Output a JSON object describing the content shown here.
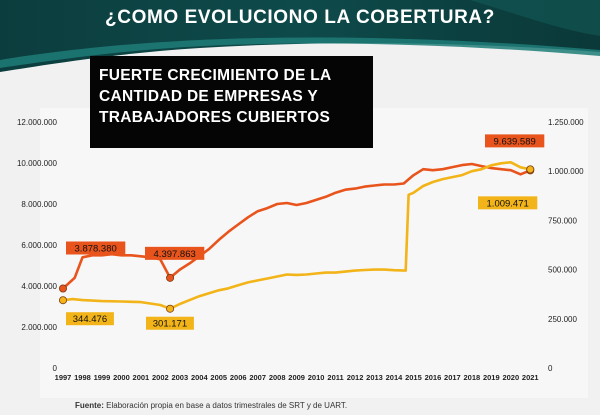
{
  "header": {
    "title": "¿COMO EVOLUCIONO  LA COBERTURA?",
    "colors": {
      "dark": "#0c3d3e",
      "accent": "#1f7d78"
    }
  },
  "callout": {
    "lines": [
      "FUERTE CRECIMIENTO DE LA",
      "CANTIDAD DE EMPRESAS Y",
      "TRABAJADORES CUBIERTOS"
    ]
  },
  "footer": {
    "label": "Fuente:",
    "text": "Elaboración propia en base a datos trimestrales de SRT y de UART."
  },
  "chart_data": {
    "type": "line",
    "x_ticks": [
      "1997",
      "1998",
      "1999",
      "2000",
      "2001",
      "2002",
      "2003",
      "2004",
      "2005",
      "2006",
      "2007",
      "2008",
      "2009",
      "2010",
      "2011",
      "2012",
      "2013",
      "2014",
      "2015",
      "2016",
      "2017",
      "2018",
      "2019",
      "2020",
      "2021"
    ],
    "x_range": [
      1997,
      2021.5
    ],
    "y_left": {
      "ticks": [
        "0",
        "2.000.000",
        "4.000.000",
        "6.000.000",
        "8.000.000",
        "10.000.000",
        "12.000.000"
      ],
      "range": [
        0,
        12000000
      ]
    },
    "y_right": {
      "ticks": [
        "0",
        "250.000",
        "500.000",
        "750.000",
        "1.000.000",
        "1.250.000"
      ],
      "range": [
        0,
        1250000
      ]
    },
    "grid": false,
    "series": [
      {
        "axis": "left",
        "color": "#e8541c",
        "points": [
          [
            1997.0,
            3878380
          ],
          [
            1997.6,
            4400000
          ],
          [
            1998.0,
            5400000
          ],
          [
            1998.5,
            5500000
          ],
          [
            1999.0,
            5500000
          ],
          [
            1999.5,
            5550000
          ],
          [
            2000.0,
            5500000
          ],
          [
            2000.5,
            5500000
          ],
          [
            2001.0,
            5450000
          ],
          [
            2001.5,
            5400000
          ],
          [
            2002.0,
            5300000
          ],
          [
            2002.5,
            4397863
          ],
          [
            2003.0,
            4800000
          ],
          [
            2003.5,
            5100000
          ],
          [
            2004.0,
            5450000
          ],
          [
            2004.5,
            5800000
          ],
          [
            2005.0,
            6250000
          ],
          [
            2005.5,
            6650000
          ],
          [
            2006.0,
            7000000
          ],
          [
            2006.5,
            7350000
          ],
          [
            2007.0,
            7650000
          ],
          [
            2007.5,
            7800000
          ],
          [
            2008.0,
            8000000
          ],
          [
            2008.5,
            8050000
          ],
          [
            2009.0,
            7950000
          ],
          [
            2009.5,
            8050000
          ],
          [
            2010.0,
            8200000
          ],
          [
            2010.5,
            8350000
          ],
          [
            2011.0,
            8550000
          ],
          [
            2011.5,
            8700000
          ],
          [
            2012.0,
            8750000
          ],
          [
            2012.5,
            8850000
          ],
          [
            2013.0,
            8900000
          ],
          [
            2013.5,
            8950000
          ],
          [
            2014.0,
            8950000
          ],
          [
            2014.5,
            9000000
          ],
          [
            2015.0,
            9400000
          ],
          [
            2015.5,
            9700000
          ],
          [
            2016.0,
            9650000
          ],
          [
            2016.5,
            9700000
          ],
          [
            2017.0,
            9800000
          ],
          [
            2017.5,
            9900000
          ],
          [
            2018.0,
            9950000
          ],
          [
            2018.5,
            9850000
          ],
          [
            2019.0,
            9750000
          ],
          [
            2019.5,
            9700000
          ],
          [
            2020.0,
            9650000
          ],
          [
            2020.5,
            9450000
          ],
          [
            2021.0,
            9639589
          ]
        ],
        "labels": [
          {
            "x": 1997.0,
            "y": 3878380,
            "text": "3.878.380"
          },
          {
            "x": 2002.5,
            "y": 4397863,
            "text": "4.397.863"
          },
          {
            "x": 2021.0,
            "y": 9639589,
            "text": "9.639.589"
          }
        ]
      },
      {
        "axis": "right",
        "color": "#f2b418",
        "points": [
          [
            1997.0,
            344476
          ],
          [
            1997.5,
            350000
          ],
          [
            1998.0,
            345000
          ],
          [
            1999.0,
            340000
          ],
          [
            2000.0,
            338000
          ],
          [
            2001.0,
            335000
          ],
          [
            2002.0,
            320000
          ],
          [
            2002.5,
            301171
          ],
          [
            2003.0,
            325000
          ],
          [
            2003.5,
            345000
          ],
          [
            2004.0,
            365000
          ],
          [
            2004.5,
            380000
          ],
          [
            2005.0,
            395000
          ],
          [
            2005.5,
            405000
          ],
          [
            2006.0,
            420000
          ],
          [
            2006.5,
            435000
          ],
          [
            2007.0,
            445000
          ],
          [
            2007.5,
            455000
          ],
          [
            2008.0,
            465000
          ],
          [
            2008.5,
            475000
          ],
          [
            2009.0,
            473000
          ],
          [
            2009.5,
            475000
          ],
          [
            2010.0,
            480000
          ],
          [
            2010.5,
            485000
          ],
          [
            2011.0,
            485000
          ],
          [
            2011.5,
            490000
          ],
          [
            2012.0,
            495000
          ],
          [
            2012.5,
            498000
          ],
          [
            2013.0,
            500000
          ],
          [
            2013.5,
            500000
          ],
          [
            2014.0,
            497000
          ],
          [
            2014.6,
            495000
          ],
          [
            2014.75,
            880000
          ],
          [
            2015.0,
            890000
          ],
          [
            2015.5,
            925000
          ],
          [
            2016.0,
            945000
          ],
          [
            2016.5,
            960000
          ],
          [
            2017.0,
            970000
          ],
          [
            2017.5,
            980000
          ],
          [
            2018.0,
            1000000
          ],
          [
            2018.5,
            1010000
          ],
          [
            2019.0,
            1030000
          ],
          [
            2019.5,
            1040000
          ],
          [
            2020.0,
            1045000
          ],
          [
            2020.5,
            1020000
          ],
          [
            2021.0,
            1009471
          ]
        ],
        "labels": [
          {
            "x": 1997.0,
            "y": 344476,
            "text": "344.476"
          },
          {
            "x": 2002.5,
            "y": 301171,
            "text": "301.171"
          },
          {
            "x": 2021.0,
            "y": 1009471,
            "text": "1.009.471"
          }
        ]
      }
    ]
  }
}
